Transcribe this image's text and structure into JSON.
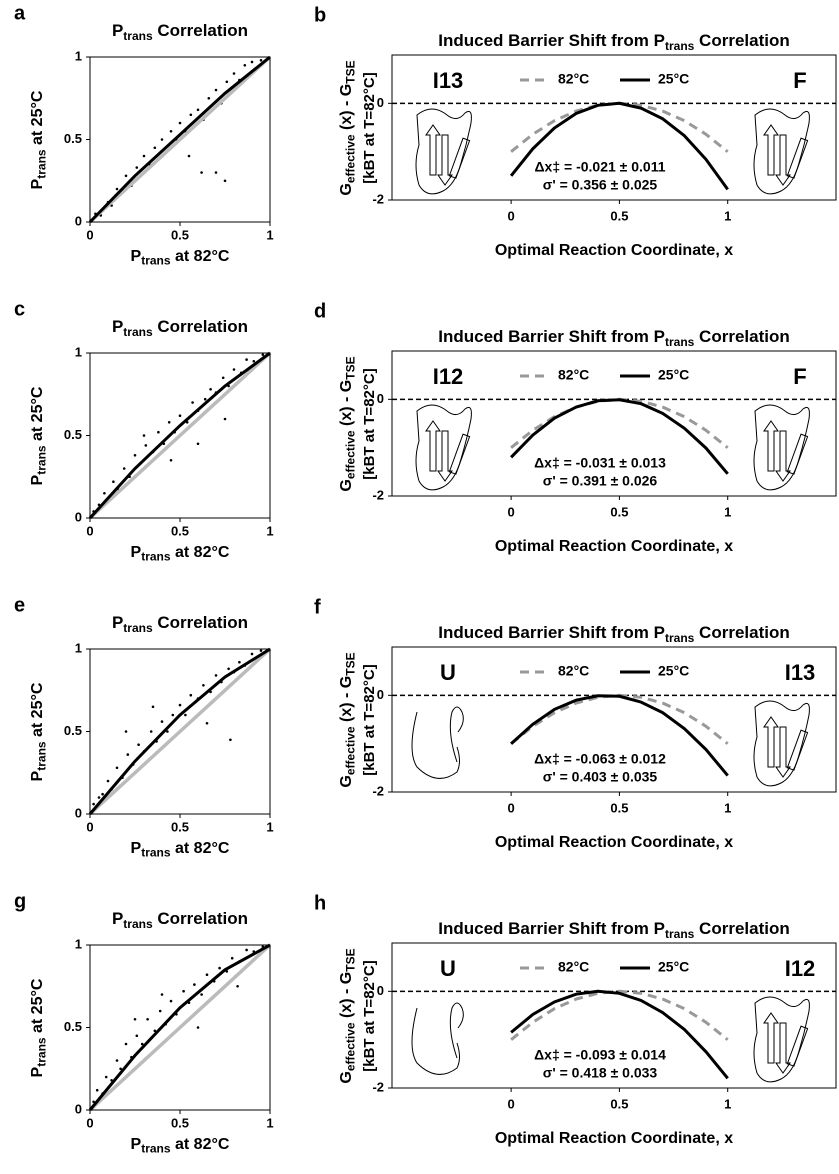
{
  "chart_data": [
    {
      "type": "scatter",
      "panel": "a",
      "title": [
        {
          "text": "P"
        },
        {
          "text": "trans",
          "sub": true
        },
        {
          "text": " Correlation"
        }
      ],
      "xlabel": [
        {
          "text": "P"
        },
        {
          "text": "trans",
          "sub": true
        },
        {
          "text": " at 82°C"
        }
      ],
      "ylabel": [
        {
          "text": "P"
        },
        {
          "text": "trans",
          "sub": true
        },
        {
          "text": " at 25°C"
        }
      ],
      "xlim": [
        0,
        1
      ],
      "ylim": [
        0,
        1
      ],
      "xticks": [
        0,
        0.5,
        1
      ],
      "yticks": [
        0,
        0.5,
        1
      ],
      "point_color": "#000000",
      "x": [
        0.03,
        0.06,
        0.1,
        0.12,
        0.15,
        0.18,
        0.2,
        0.23,
        0.26,
        0.3,
        0.33,
        0.36,
        0.4,
        0.42,
        0.45,
        0.48,
        0.5,
        0.53,
        0.56,
        0.6,
        0.63,
        0.66,
        0.7,
        0.73,
        0.76,
        0.8,
        0.83,
        0.86,
        0.9,
        0.95,
        0.7,
        0.75,
        0.55,
        0.62
      ],
      "values": [
        0.05,
        0.04,
        0.12,
        0.1,
        0.2,
        0.18,
        0.28,
        0.22,
        0.33,
        0.4,
        0.35,
        0.45,
        0.5,
        0.42,
        0.55,
        0.5,
        0.6,
        0.55,
        0.65,
        0.68,
        0.62,
        0.75,
        0.8,
        0.72,
        0.85,
        0.9,
        0.86,
        0.95,
        0.97,
        0.98,
        0.3,
        0.25,
        0.4,
        0.3
      ],
      "line_x": [
        0,
        0.25,
        0.5,
        0.75,
        1
      ],
      "lines": [
        {
          "color": "#bbbbbb",
          "values": [
            0,
            0.25,
            0.5,
            0.75,
            1
          ]
        },
        {
          "color": "#000000",
          "values": [
            0,
            0.28,
            0.53,
            0.78,
            1
          ]
        }
      ]
    },
    {
      "type": "line",
      "panel": "b",
      "title": [
        {
          "text": "Induced Barrier Shift from "
        },
        {
          "text": "P"
        },
        {
          "text": "trans",
          "sub": true
        },
        {
          "text": " Correlation"
        }
      ],
      "ylabel": [
        {
          "text": "G"
        },
        {
          "text": "effective",
          "sub": true
        },
        {
          "text": " (x) - G"
        },
        {
          "text": "TSE",
          "sub": true
        }
      ],
      "ylabel2": "[kBT at T=82°C]",
      "xlabel": "Optimal Reaction Coordinate, x",
      "xlim": [
        -0.55,
        1.5
      ],
      "ylim": [
        -2,
        1
      ],
      "xticks": [
        0,
        0.5,
        1
      ],
      "yticks": [
        -2,
        0
      ],
      "hline": 0,
      "states": [
        "I13",
        "F"
      ],
      "annotations": [
        "Δx‡ = -0.021 ± 0.011",
        "σ' = 0.356 ± 0.025"
      ],
      "x": [
        0,
        0.1,
        0.2,
        0.3,
        0.4,
        0.5,
        0.6,
        0.7,
        0.8,
        0.9,
        1
      ],
      "series": [
        {
          "name": "82°C",
          "color": "#999999",
          "dashed": true,
          "values": [
            -1,
            -0.64,
            -0.36,
            -0.16,
            -0.04,
            0,
            -0.04,
            -0.16,
            -0.36,
            -0.64,
            -1
          ]
        },
        {
          "name": "25°C",
          "color": "#000000",
          "dashed": false,
          "values": [
            -1.5,
            -0.94,
            -0.51,
            -0.21,
            -0.04,
            0,
            -0.1,
            -0.32,
            -0.67,
            -1.16,
            -1.78
          ]
        }
      ]
    },
    {
      "type": "scatter",
      "panel": "c",
      "title": [
        {
          "text": "P"
        },
        {
          "text": "trans",
          "sub": true
        },
        {
          "text": " Correlation"
        }
      ],
      "xlabel": [
        {
          "text": "P"
        },
        {
          "text": "trans",
          "sub": true
        },
        {
          "text": " at 82°C"
        }
      ],
      "ylabel": [
        {
          "text": "P"
        },
        {
          "text": "trans",
          "sub": true
        },
        {
          "text": " at 25°C"
        }
      ],
      "xlim": [
        0,
        1
      ],
      "ylim": [
        0,
        1
      ],
      "xticks": [
        0,
        0.5,
        1
      ],
      "yticks": [
        0,
        0.5,
        1
      ],
      "point_color": "#000000",
      "x": [
        0.02,
        0.05,
        0.08,
        0.1,
        0.13,
        0.16,
        0.19,
        0.22,
        0.25,
        0.28,
        0.31,
        0.35,
        0.38,
        0.41,
        0.44,
        0.47,
        0.5,
        0.54,
        0.57,
        0.6,
        0.64,
        0.67,
        0.7,
        0.74,
        0.77,
        0.8,
        0.84,
        0.87,
        0.91,
        0.96,
        0.45,
        0.6,
        0.3,
        0.75
      ],
      "values": [
        0.04,
        0.08,
        0.15,
        0.1,
        0.22,
        0.17,
        0.3,
        0.25,
        0.38,
        0.33,
        0.44,
        0.4,
        0.52,
        0.45,
        0.58,
        0.52,
        0.62,
        0.58,
        0.7,
        0.65,
        0.72,
        0.78,
        0.76,
        0.85,
        0.8,
        0.9,
        0.88,
        0.96,
        0.95,
        0.99,
        0.35,
        0.45,
        0.5,
        0.6
      ],
      "line_x": [
        0,
        0.25,
        0.5,
        0.75,
        1
      ],
      "lines": [
        {
          "color": "#bbbbbb",
          "values": [
            0,
            0.25,
            0.5,
            0.75,
            1
          ]
        },
        {
          "color": "#000000",
          "values": [
            0,
            0.3,
            0.56,
            0.8,
            1
          ]
        }
      ]
    },
    {
      "type": "line",
      "panel": "d",
      "title": [
        {
          "text": "Induced Barrier Shift from "
        },
        {
          "text": "P"
        },
        {
          "text": "trans",
          "sub": true
        },
        {
          "text": " Correlation"
        }
      ],
      "ylabel": [
        {
          "text": "G"
        },
        {
          "text": "effective",
          "sub": true
        },
        {
          "text": " (x) - G"
        },
        {
          "text": "TSE",
          "sub": true
        }
      ],
      "ylabel2": "[kBT at T=82°C]",
      "xlabel": "Optimal Reaction Coordinate, x",
      "xlim": [
        -0.55,
        1.5
      ],
      "ylim": [
        -2,
        1
      ],
      "xticks": [
        0,
        0.5,
        1
      ],
      "yticks": [
        -2,
        0
      ],
      "hline": 0,
      "states": [
        "I12",
        "F"
      ],
      "annotations": [
        "Δx‡ = -0.031 ± 0.013",
        "σ' = 0.391 ± 0.026"
      ],
      "x": [
        0,
        0.1,
        0.2,
        0.3,
        0.4,
        0.5,
        0.6,
        0.7,
        0.8,
        0.9,
        1
      ],
      "series": [
        {
          "name": "82°C",
          "color": "#999999",
          "dashed": true,
          "values": [
            -1,
            -0.64,
            -0.36,
            -0.16,
            -0.04,
            0,
            -0.04,
            -0.16,
            -0.36,
            -0.64,
            -1
          ]
        },
        {
          "name": "25°C",
          "color": "#000000",
          "dashed": false,
          "values": [
            -1.2,
            -0.74,
            -0.39,
            -0.16,
            -0.03,
            -0.01,
            -0.09,
            -0.29,
            -0.6,
            -1.01,
            -1.54
          ]
        }
      ]
    },
    {
      "type": "scatter",
      "panel": "e",
      "title": [
        {
          "text": "P"
        },
        {
          "text": "trans",
          "sub": true
        },
        {
          "text": " Correlation"
        }
      ],
      "xlabel": [
        {
          "text": "P"
        },
        {
          "text": "trans",
          "sub": true
        },
        {
          "text": " at 82°C"
        }
      ],
      "ylabel": [
        {
          "text": "P"
        },
        {
          "text": "trans",
          "sub": true
        },
        {
          "text": " at 25°C"
        }
      ],
      "xlim": [
        0,
        1
      ],
      "ylim": [
        0,
        1
      ],
      "xticks": [
        0,
        0.5,
        1
      ],
      "yticks": [
        0,
        0.5,
        1
      ],
      "point_color": "#000000",
      "x": [
        0.02,
        0.05,
        0.07,
        0.1,
        0.12,
        0.15,
        0.18,
        0.21,
        0.24,
        0.27,
        0.3,
        0.34,
        0.37,
        0.4,
        0.43,
        0.46,
        0.5,
        0.53,
        0.56,
        0.6,
        0.63,
        0.67,
        0.7,
        0.73,
        0.77,
        0.8,
        0.83,
        0.86,
        0.9,
        0.95,
        0.2,
        0.35,
        0.65,
        0.78
      ],
      "values": [
        0.06,
        0.1,
        0.12,
        0.2,
        0.15,
        0.28,
        0.22,
        0.36,
        0.3,
        0.42,
        0.38,
        0.5,
        0.44,
        0.56,
        0.5,
        0.6,
        0.66,
        0.6,
        0.72,
        0.7,
        0.78,
        0.74,
        0.84,
        0.8,
        0.88,
        0.86,
        0.92,
        0.9,
        0.97,
        0.99,
        0.5,
        0.65,
        0.55,
        0.45
      ],
      "line_x": [
        0,
        0.25,
        0.5,
        0.75,
        1
      ],
      "lines": [
        {
          "color": "#bbbbbb",
          "values": [
            0,
            0.25,
            0.5,
            0.75,
            1
          ]
        },
        {
          "color": "#000000",
          "values": [
            0,
            0.32,
            0.6,
            0.83,
            1
          ]
        }
      ]
    },
    {
      "type": "line",
      "panel": "f",
      "title": [
        {
          "text": "Induced Barrier Shift from "
        },
        {
          "text": "P"
        },
        {
          "text": "trans",
          "sub": true
        },
        {
          "text": " Correlation"
        }
      ],
      "ylabel": [
        {
          "text": "G"
        },
        {
          "text": "effective",
          "sub": true
        },
        {
          "text": " (x) - G"
        },
        {
          "text": "TSE",
          "sub": true
        }
      ],
      "ylabel2": "[kBT at T=82°C]",
      "xlabel": "Optimal Reaction Coordinate, x",
      "xlim": [
        -0.55,
        1.5
      ],
      "ylim": [
        -2,
        1
      ],
      "xticks": [
        0,
        0.5,
        1
      ],
      "yticks": [
        -2,
        0
      ],
      "hline": 0,
      "states": [
        "U",
        "I13"
      ],
      "annotations": [
        "Δx‡ = -0.063 ± 0.012",
        "σ' = 0.403 ± 0.035"
      ],
      "x": [
        0,
        0.1,
        0.2,
        0.3,
        0.4,
        0.5,
        0.6,
        0.7,
        0.8,
        0.9,
        1
      ],
      "series": [
        {
          "name": "82°C",
          "color": "#999999",
          "dashed": true,
          "values": [
            -1,
            -0.64,
            -0.36,
            -0.16,
            -0.04,
            0,
            -0.04,
            -0.16,
            -0.36,
            -0.64,
            -1
          ]
        },
        {
          "name": "25°C",
          "color": "#000000",
          "dashed": false,
          "values": [
            -1,
            -0.6,
            -0.29,
            -0.1,
            -0.01,
            -0.02,
            -0.14,
            -0.36,
            -0.69,
            -1.12,
            -1.66
          ]
        }
      ]
    },
    {
      "type": "scatter",
      "panel": "g",
      "title": [
        {
          "text": "P"
        },
        {
          "text": "trans",
          "sub": true
        },
        {
          "text": " Correlation"
        }
      ],
      "xlabel": [
        {
          "text": "P"
        },
        {
          "text": "trans",
          "sub": true
        },
        {
          "text": " at 82°C"
        }
      ],
      "ylabel": [
        {
          "text": "P"
        },
        {
          "text": "trans",
          "sub": true
        },
        {
          "text": " at 25°C"
        }
      ],
      "xlim": [
        0,
        1
      ],
      "ylim": [
        0,
        1
      ],
      "xticks": [
        0,
        0.5,
        1
      ],
      "yticks": [
        0,
        0.5,
        1
      ],
      "point_color": "#000000",
      "x": [
        0.02,
        0.04,
        0.07,
        0.09,
        0.12,
        0.15,
        0.17,
        0.2,
        0.23,
        0.26,
        0.29,
        0.32,
        0.36,
        0.39,
        0.42,
        0.45,
        0.48,
        0.52,
        0.55,
        0.58,
        0.62,
        0.65,
        0.69,
        0.72,
        0.76,
        0.79,
        0.83,
        0.87,
        0.91,
        0.96,
        0.25,
        0.4,
        0.6,
        0.82
      ],
      "values": [
        0.05,
        0.12,
        0.1,
        0.2,
        0.18,
        0.3,
        0.25,
        0.4,
        0.32,
        0.45,
        0.4,
        0.55,
        0.48,
        0.6,
        0.52,
        0.66,
        0.58,
        0.72,
        0.65,
        0.76,
        0.7,
        0.82,
        0.78,
        0.86,
        0.84,
        0.92,
        0.9,
        0.97,
        0.96,
        0.99,
        0.55,
        0.7,
        0.5,
        0.75
      ],
      "line_x": [
        0,
        0.25,
        0.5,
        0.75,
        1
      ],
      "lines": [
        {
          "color": "#bbbbbb",
          "values": [
            0,
            0.25,
            0.5,
            0.75,
            1
          ]
        },
        {
          "color": "#000000",
          "values": [
            0,
            0.33,
            0.62,
            0.85,
            1
          ]
        }
      ]
    },
    {
      "type": "line",
      "panel": "h",
      "title": [
        {
          "text": "Induced Barrier Shift from "
        },
        {
          "text": "P"
        },
        {
          "text": "trans",
          "sub": true
        },
        {
          "text": " Correlation"
        }
      ],
      "ylabel": [
        {
          "text": "G"
        },
        {
          "text": "effective",
          "sub": true
        },
        {
          "text": " (x) - G"
        },
        {
          "text": "TSE",
          "sub": true
        }
      ],
      "ylabel2": "[kBT at T=82°C]",
      "xlabel": "Optimal Reaction Coordinate, x",
      "xlim": [
        -0.55,
        1.5
      ],
      "ylim": [
        -2,
        1
      ],
      "xticks": [
        0,
        0.5,
        1
      ],
      "yticks": [
        -2,
        0
      ],
      "hline": 0,
      "states": [
        "U",
        "I12"
      ],
      "annotations": [
        "Δx‡ = -0.093 ± 0.014",
        "σ' = 0.418 ± 0.033"
      ],
      "x": [
        0,
        0.1,
        0.2,
        0.3,
        0.4,
        0.5,
        0.6,
        0.7,
        0.8,
        0.9,
        1
      ],
      "series": [
        {
          "name": "82°C",
          "color": "#999999",
          "dashed": true,
          "values": [
            -1,
            -0.64,
            -0.36,
            -0.16,
            -0.04,
            0,
            -0.04,
            -0.16,
            -0.36,
            -0.64,
            -1
          ]
        },
        {
          "name": "25°C",
          "color": "#000000",
          "dashed": false,
          "values": [
            -0.85,
            -0.48,
            -0.22,
            -0.06,
            0,
            -0.04,
            -0.19,
            -0.44,
            -0.79,
            -1.25,
            -1.8
          ]
        }
      ]
    }
  ]
}
